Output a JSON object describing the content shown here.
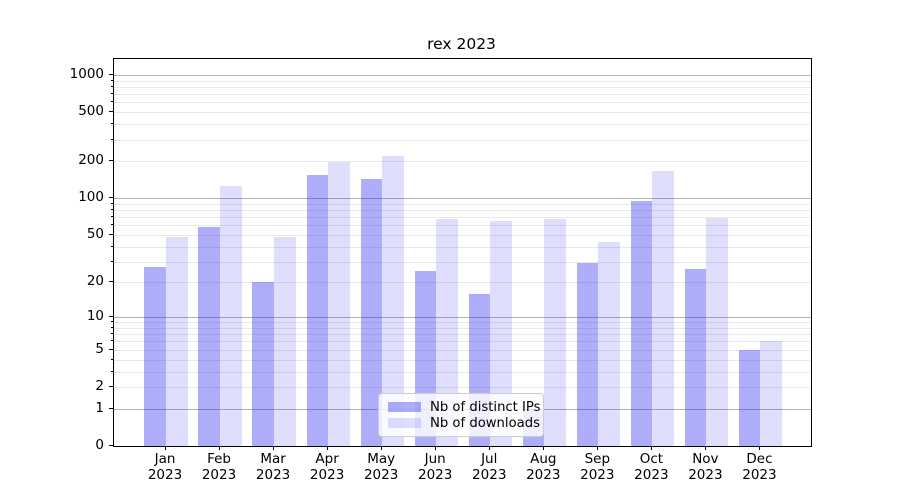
{
  "chart_data": {
    "type": "bar",
    "title": "rex 2023",
    "xlabel": "",
    "ylabel": "",
    "yscale": "log(1+y)",
    "categories": [
      "Jan",
      "Feb",
      "Mar",
      "Apr",
      "May",
      "Jun",
      "Jul",
      "Aug",
      "Sep",
      "Oct",
      "Nov",
      "Dec"
    ],
    "year_label": "2023",
    "series": [
      {
        "name": "Nb of distinct IPs",
        "values": [
          27,
          58,
          20,
          153,
          143,
          25,
          16,
          1,
          29,
          95,
          26,
          5
        ]
      },
      {
        "name": "Nb of downloads",
        "values": [
          48,
          125,
          48,
          196,
          220,
          68,
          65,
          67,
          44,
          166,
          69,
          6
        ]
      }
    ],
    "y_ticks": [
      0,
      1,
      2,
      5,
      10,
      20,
      50,
      100,
      200,
      500,
      1000
    ],
    "major_gridlines": [
      1,
      10,
      100,
      1000
    ],
    "minor_gridlines": [
      2,
      3,
      4,
      5,
      6,
      7,
      8,
      9,
      20,
      30,
      40,
      50,
      60,
      70,
      80,
      90,
      200,
      300,
      400,
      500,
      600,
      700,
      800,
      900
    ],
    "ylim_top": 1370,
    "grid": "on",
    "legend_position": "inside lower-center"
  },
  "legend": {
    "items": [
      {
        "label": "Nb of distinct IPs",
        "series": "ips"
      },
      {
        "label": "Nb of downloads",
        "series": "downloads"
      }
    ]
  },
  "colors": {
    "bar_dark": "rgba(50,50,240,0.40)",
    "bar_light": "rgba(50,50,240,0.155)",
    "grid_major": "#b2b2b2",
    "grid_minor": "#e8e8e8",
    "axis": "#000000",
    "legend_border": "#cccccc",
    "title_color": "#000000"
  }
}
